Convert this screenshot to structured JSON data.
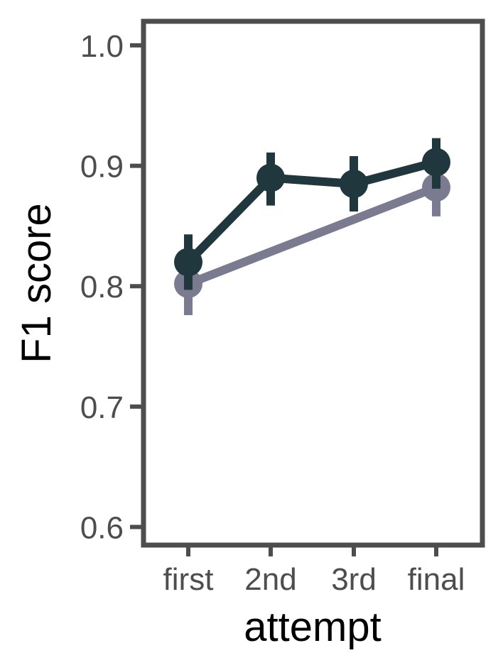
{
  "chart_data": {
    "type": "line",
    "xlabel": "attempt",
    "ylabel": "F1 score",
    "categories": [
      "first",
      "2nd",
      "3rd",
      "final"
    ],
    "ylim": [
      0.585,
      1.02
    ],
    "yticks": [
      0.6,
      0.7,
      0.8,
      0.9,
      1.0
    ],
    "ytick_labels": [
      "0.6",
      "0.7",
      "0.8",
      "0.9",
      "1.0"
    ],
    "grid": false,
    "legend": "none",
    "series": [
      {
        "color": "#7a7b90",
        "points": [
          {
            "category": "first",
            "y": 0.802,
            "err_low": 0.776,
            "err_high": 0.828
          },
          {
            "category": "final",
            "y": 0.882,
            "err_low": 0.858,
            "err_high": 0.906
          }
        ]
      },
      {
        "color": "#1f373d",
        "points": [
          {
            "category": "first",
            "y": 0.82,
            "err_low": 0.797,
            "err_high": 0.843
          },
          {
            "category": "2nd",
            "y": 0.89,
            "err_low": 0.867,
            "err_high": 0.911
          },
          {
            "category": "3rd",
            "y": 0.885,
            "err_low": 0.862,
            "err_high": 0.908
          },
          {
            "category": "final",
            "y": 0.903,
            "err_low": 0.881,
            "err_high": 0.923
          }
        ]
      }
    ]
  },
  "colors": {
    "frame": "#4d4d4d",
    "tick_text": "#4d4d4d",
    "title_text": "#000000"
  }
}
